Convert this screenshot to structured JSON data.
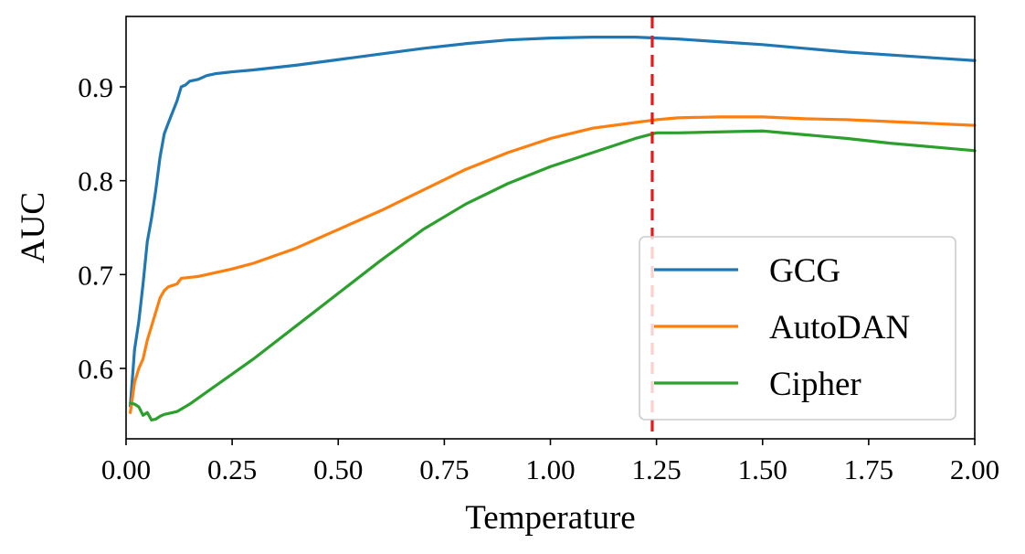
{
  "chart_data": {
    "type": "line",
    "title": "",
    "xlabel": "Temperature",
    "ylabel": "AUC",
    "xlim": [
      0.0,
      2.0
    ],
    "ylim": [
      0.525,
      0.975
    ],
    "xticks": [
      0.0,
      0.25,
      0.5,
      0.75,
      1.0,
      1.25,
      1.5,
      1.75,
      2.0
    ],
    "xtick_labels": [
      "0.00",
      "0.25",
      "0.50",
      "0.75",
      "1.00",
      "1.25",
      "1.50",
      "1.75",
      "2.00"
    ],
    "yticks": [
      0.6,
      0.7,
      0.8,
      0.9
    ],
    "ytick_labels": [
      "0.6",
      "0.7",
      "0.8",
      "0.9"
    ],
    "grid": false,
    "legend_position": "lower-right",
    "annotations": [
      {
        "type": "vertical-dashed-line",
        "x": 1.24,
        "color": "#e41a1c"
      }
    ],
    "series": [
      {
        "name": "GCG",
        "color": "#1f77b4",
        "x": [
          0.01,
          0.02,
          0.03,
          0.04,
          0.05,
          0.06,
          0.07,
          0.08,
          0.09,
          0.1,
          0.12,
          0.13,
          0.14,
          0.15,
          0.17,
          0.19,
          0.21,
          0.25,
          0.3,
          0.4,
          0.5,
          0.6,
          0.7,
          0.8,
          0.9,
          1.0,
          1.1,
          1.2,
          1.3,
          1.4,
          1.5,
          1.6,
          1.7,
          1.8,
          1.9,
          2.0
        ],
        "y": [
          0.56,
          0.62,
          0.65,
          0.69,
          0.735,
          0.76,
          0.79,
          0.825,
          0.85,
          0.862,
          0.885,
          0.9,
          0.902,
          0.906,
          0.908,
          0.912,
          0.914,
          0.916,
          0.918,
          0.923,
          0.929,
          0.935,
          0.941,
          0.946,
          0.95,
          0.952,
          0.953,
          0.953,
          0.951,
          0.948,
          0.945,
          0.941,
          0.937,
          0.934,
          0.931,
          0.928
        ]
      },
      {
        "name": "AutoDAN",
        "color": "#ff7f0e",
        "x": [
          0.01,
          0.02,
          0.03,
          0.04,
          0.05,
          0.06,
          0.07,
          0.08,
          0.09,
          0.1,
          0.12,
          0.13,
          0.15,
          0.17,
          0.2,
          0.25,
          0.3,
          0.4,
          0.5,
          0.6,
          0.7,
          0.8,
          0.9,
          1.0,
          1.1,
          1.2,
          1.25,
          1.3,
          1.4,
          1.5,
          1.6,
          1.7,
          1.8,
          1.9,
          2.0
        ],
        "y": [
          0.553,
          0.585,
          0.6,
          0.61,
          0.63,
          0.645,
          0.66,
          0.675,
          0.683,
          0.687,
          0.69,
          0.696,
          0.697,
          0.698,
          0.701,
          0.706,
          0.712,
          0.728,
          0.748,
          0.768,
          0.79,
          0.812,
          0.83,
          0.845,
          0.856,
          0.862,
          0.865,
          0.867,
          0.868,
          0.868,
          0.866,
          0.865,
          0.863,
          0.861,
          0.859
        ]
      },
      {
        "name": "Cipher",
        "color": "#2ca02c",
        "x": [
          0.01,
          0.02,
          0.03,
          0.04,
          0.05,
          0.06,
          0.07,
          0.08,
          0.09,
          0.1,
          0.12,
          0.15,
          0.2,
          0.3,
          0.4,
          0.5,
          0.6,
          0.7,
          0.8,
          0.9,
          1.0,
          1.1,
          1.2,
          1.25,
          1.3,
          1.4,
          1.5,
          1.6,
          1.7,
          1.8,
          1.9,
          2.0
        ],
        "y": [
          0.563,
          0.562,
          0.559,
          0.55,
          0.553,
          0.545,
          0.546,
          0.549,
          0.551,
          0.552,
          0.554,
          0.562,
          0.578,
          0.61,
          0.645,
          0.68,
          0.715,
          0.748,
          0.775,
          0.797,
          0.815,
          0.83,
          0.845,
          0.851,
          0.851,
          0.852,
          0.853,
          0.849,
          0.845,
          0.84,
          0.836,
          0.832
        ]
      }
    ]
  }
}
